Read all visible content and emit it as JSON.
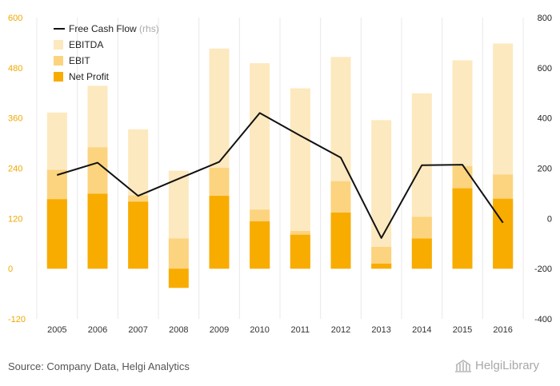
{
  "chart_data": {
    "type": "bar",
    "categories": [
      "2005",
      "2006",
      "2007",
      "2008",
      "2009",
      "2010",
      "2011",
      "2012",
      "2013",
      "2014",
      "2015",
      "2016"
    ],
    "series": [
      {
        "name": "EBITDA",
        "axis": "left",
        "color": "#fde9bf",
        "values": [
          373,
          437,
          333,
          234,
          526,
          491,
          431,
          506,
          355,
          419,
          498,
          538
        ]
      },
      {
        "name": "EBIT",
        "axis": "left",
        "color": "#fcd47f",
        "values": [
          236,
          290,
          175,
          72,
          241,
          141,
          90,
          209,
          52,
          124,
          245,
          225
        ]
      },
      {
        "name": "Net Profit",
        "axis": "left",
        "color": "#f8ac00",
        "values": [
          166,
          179,
          160,
          -46,
          174,
          113,
          81,
          134,
          12,
          72,
          192,
          167
        ]
      },
      {
        "name": "Free Cash Flow",
        "suffix": "(rhs)",
        "axis": "right",
        "type": "line",
        "color": "#111111",
        "values": [
          173,
          222,
          90,
          158,
          225,
          420,
          330,
          242,
          -78,
          212,
          214,
          -17
        ]
      }
    ],
    "yleft": {
      "ticks": [
        -120,
        0,
        120,
        240,
        360,
        480,
        600
      ],
      "range": [
        -120,
        600
      ],
      "tick_color": "#f0a800"
    },
    "yright": {
      "ticks": [
        -400,
        -200,
        0,
        200,
        400,
        600,
        800
      ],
      "range": [
        -400,
        800
      ],
      "tick_color": "#222222"
    },
    "legend": {
      "placement": "top-left"
    },
    "grid": "vertical"
  },
  "source": "Source: Company Data, Helgi Analytics",
  "logo": {
    "text": "HelgiLibrary",
    "color": "#a8a8a8"
  }
}
